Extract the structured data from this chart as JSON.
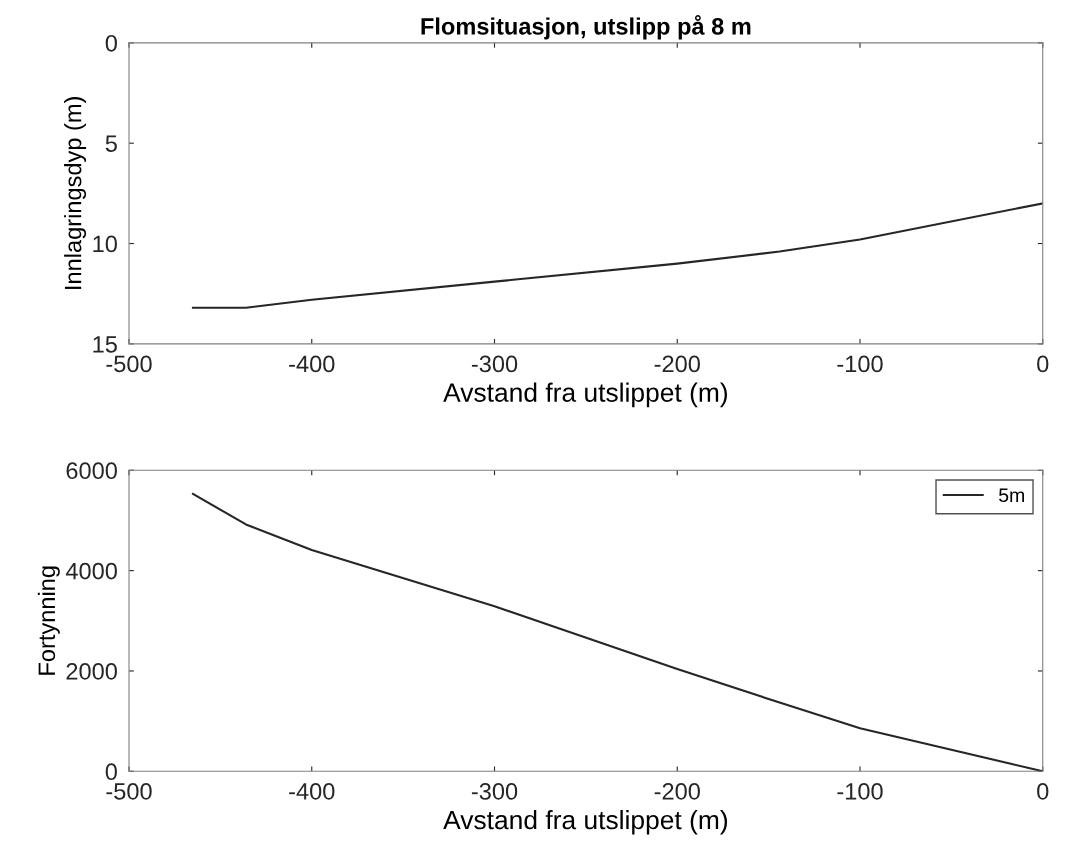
{
  "chart_data": [
    {
      "type": "line",
      "title": "Flomsituasjon, utslipp på 8 m",
      "xlabel": "Avstand fra utslippet (m)",
      "ylabel": "Innlagringsdyp (m)",
      "x": [
        -465,
        -436,
        -400,
        -300,
        -200,
        -144,
        -100,
        0
      ],
      "series": [
        {
          "color": "#262626",
          "values": [
            13.2,
            13.2,
            12.8,
            11.9,
            11.0,
            10.4,
            9.8,
            8.0
          ]
        }
      ],
      "xlim": [
        -500,
        0
      ],
      "xticks": [
        -500,
        -400,
        -300,
        -200,
        -100,
        0
      ],
      "ylim": [
        15,
        0
      ],
      "yticks": [
        0,
        5,
        10,
        15
      ]
    },
    {
      "type": "line",
      "xlabel": "Avstand fra utslippet (m)",
      "ylabel": "Fortynning",
      "x": [
        -465,
        -436,
        -400,
        -300,
        -200,
        -144,
        -100,
        0
      ],
      "series": [
        {
          "name": "5m",
          "color": "#262626",
          "values": [
            5530,
            4920,
            4410,
            3290,
            2040,
            1370,
            860,
            0
          ]
        }
      ],
      "xlim": [
        -500,
        0
      ],
      "xticks": [
        -500,
        -400,
        -300,
        -200,
        -100,
        0
      ],
      "ylim": [
        0,
        6000
      ],
      "yticks": [
        0,
        2000,
        4000,
        6000
      ],
      "legend": "top right"
    }
  ]
}
